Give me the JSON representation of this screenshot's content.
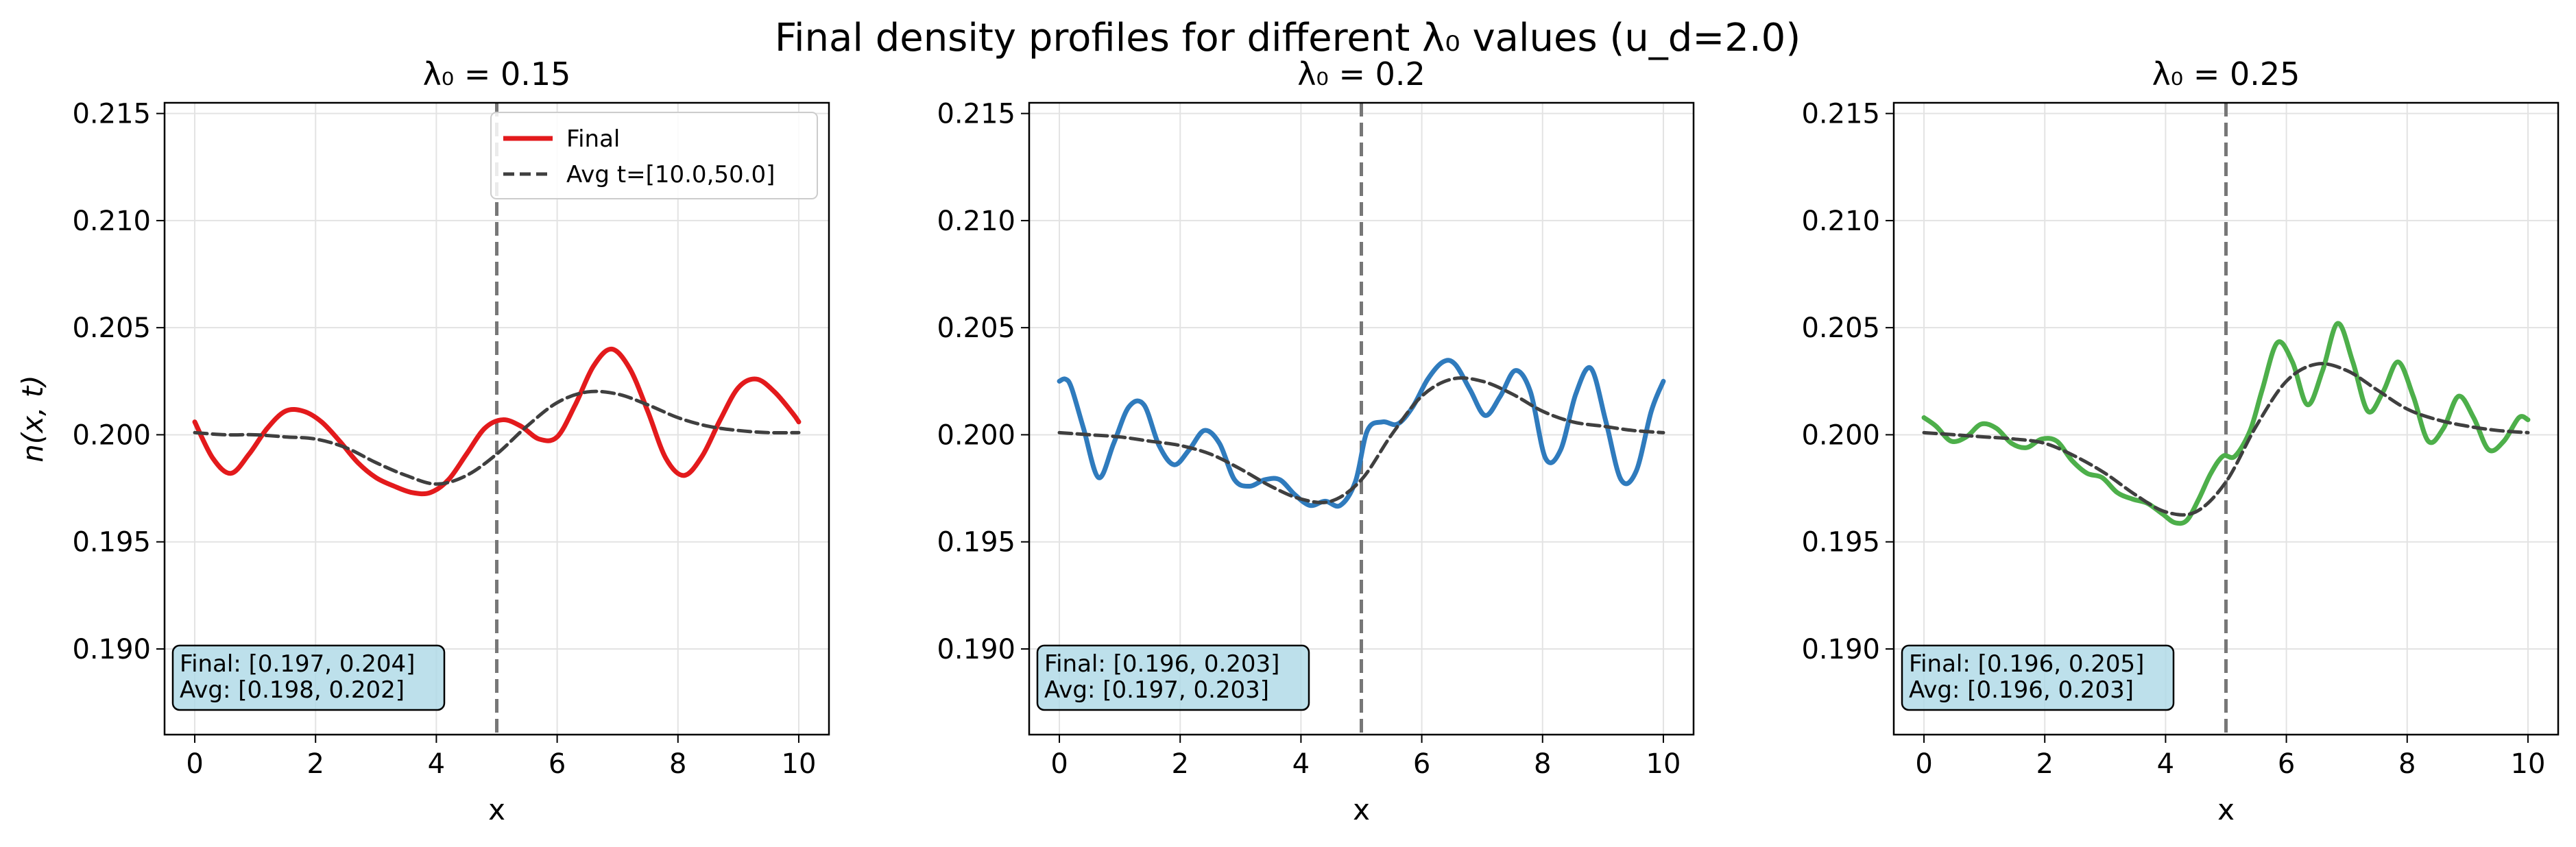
{
  "chart_data": {
    "type": "line",
    "title": "Final density profiles for different λ₀ values (u_d=2.0)",
    "ylabel": "n(x, t)",
    "xlabel": "x",
    "xlim": [
      -0.5,
      10.5
    ],
    "ylim": [
      0.186,
      0.2155
    ],
    "xticks": [
      "0",
      "2",
      "4",
      "6",
      "8",
      "10"
    ],
    "yticks": [
      "0.190",
      "0.195",
      "0.200",
      "0.205",
      "0.210",
      "0.215"
    ],
    "grid": true,
    "vline_x": 5.0,
    "legend": {
      "placement": "top-right",
      "entries": [
        "Final",
        "Avg t=[10.0,50.0]"
      ]
    },
    "panels": [
      {
        "title": "λ₀ = 0.15",
        "color": "#e31a1c",
        "annotation": [
          "Final: [0.197, 0.204]",
          "Avg: [0.198, 0.202]"
        ],
        "series": [
          {
            "name": "Final",
            "x": [
              0,
              0.3,
              0.6,
              0.9,
              1.2,
              1.5,
              1.8,
              2.1,
              2.4,
              2.7,
              3.0,
              3.3,
              3.6,
              3.9,
              4.2,
              4.5,
              4.8,
              5.1,
              5.4,
              5.7,
              6.0,
              6.3,
              6.6,
              6.9,
              7.2,
              7.5,
              7.8,
              8.1,
              8.4,
              8.7,
              9.0,
              9.3,
              9.6,
              9.9,
              10.0
            ],
            "y": [
              0.2006,
              0.1989,
              0.1982,
              0.1991,
              0.2003,
              0.2011,
              0.2011,
              0.2006,
              0.1997,
              0.1987,
              0.198,
              0.1976,
              0.1973,
              0.1973,
              0.1979,
              0.1991,
              0.2003,
              0.2007,
              0.2004,
              0.1998,
              0.1999,
              0.2014,
              0.2032,
              0.204,
              0.2031,
              0.2011,
              0.1989,
              0.1981,
              0.199,
              0.2007,
              0.2022,
              0.2026,
              0.202,
              0.201,
              0.2006
            ]
          },
          {
            "name": "Avg t=[10.0,50.0]",
            "x": [
              0,
              0.5,
              1.0,
              1.5,
              2.0,
              2.5,
              3.0,
              3.5,
              4.0,
              4.5,
              5.0,
              5.5,
              6.0,
              6.5,
              7.0,
              7.5,
              8.0,
              8.5,
              9.0,
              9.5,
              10.0
            ],
            "y": [
              0.2001,
              0.2,
              0.2,
              0.1999,
              0.1998,
              0.1994,
              0.1987,
              0.1981,
              0.1977,
              0.1981,
              0.1991,
              0.2004,
              0.2015,
              0.202,
              0.2019,
              0.2014,
              0.2008,
              0.2004,
              0.2002,
              0.2001,
              0.2001
            ]
          }
        ]
      },
      {
        "title": "λ₀ = 0.2",
        "color": "#2f7bbd",
        "annotation": [
          "Final: [0.196, 0.203]",
          "Avg: [0.197, 0.203]"
        ],
        "series": [
          {
            "name": "Final",
            "x": [
              0,
              0.1,
              0.2,
              0.4,
              0.65,
              0.9,
              1.15,
              1.4,
              1.65,
              1.9,
              2.15,
              2.4,
              2.65,
              2.9,
              3.15,
              3.4,
              3.65,
              3.9,
              4.15,
              4.4,
              4.65,
              4.9,
              5.1,
              5.35,
              5.6,
              5.85,
              6.1,
              6.35,
              6.55,
              6.8,
              7.05,
              7.3,
              7.55,
              7.8,
              8.05,
              8.3,
              8.55,
              8.8,
              9.05,
              9.3,
              9.55,
              9.8,
              10.0
            ],
            "y": [
              0.2025,
              0.2026,
              0.2022,
              0.2003,
              0.198,
              0.1996,
              0.2013,
              0.2014,
              0.1995,
              0.1986,
              0.1993,
              0.2002,
              0.1996,
              0.1979,
              0.1976,
              0.1979,
              0.1979,
              0.1972,
              0.1967,
              0.1969,
              0.1967,
              0.1978,
              0.2002,
              0.2006,
              0.2005,
              0.2013,
              0.2026,
              0.2034,
              0.2033,
              0.2021,
              0.2009,
              0.2018,
              0.203,
              0.202,
              0.1989,
              0.1993,
              0.2019,
              0.2031,
              0.2006,
              0.1979,
              0.1983,
              0.2011,
              0.2025
            ]
          },
          {
            "name": "Avg t=[10.0,50.0]",
            "x": [
              0,
              0.5,
              1.0,
              1.5,
              2.0,
              2.5,
              3.0,
              3.5,
              4.0,
              4.5,
              5.0,
              5.5,
              6.0,
              6.5,
              7.0,
              7.5,
              8.0,
              8.5,
              9.0,
              9.5,
              10.0
            ],
            "y": [
              0.2001,
              0.2,
              0.1999,
              0.1997,
              0.1995,
              0.1991,
              0.1984,
              0.1976,
              0.197,
              0.1969,
              0.1979,
              0.2,
              0.2018,
              0.2026,
              0.2025,
              0.2019,
              0.2011,
              0.2006,
              0.2004,
              0.2002,
              0.2001
            ]
          }
        ]
      },
      {
        "title": "λ₀ = 0.25",
        "color": "#4daf4a",
        "annotation": [
          "Final: [0.196, 0.205]",
          "Avg: [0.196, 0.203]"
        ],
        "series": [
          {
            "name": "Final",
            "x": [
              0,
              0.2,
              0.45,
              0.7,
              0.95,
              1.2,
              1.45,
              1.7,
              1.95,
              2.2,
              2.45,
              2.7,
              2.95,
              3.2,
              3.45,
              3.7,
              3.95,
              4.15,
              4.35,
              4.55,
              4.75,
              4.95,
              5.15,
              5.4,
              5.6,
              5.85,
              6.1,
              6.35,
              6.6,
              6.85,
              7.1,
              7.35,
              7.6,
              7.85,
              8.1,
              8.35,
              8.6,
              8.85,
              9.1,
              9.35,
              9.6,
              9.85,
              10.0
            ],
            "y": [
              0.2008,
              0.2004,
              0.1997,
              0.1999,
              0.2005,
              0.2003,
              0.1996,
              0.1994,
              0.1998,
              0.1997,
              0.1988,
              0.1982,
              0.198,
              0.1973,
              0.197,
              0.1968,
              0.1963,
              0.1959,
              0.196,
              0.197,
              0.1982,
              0.199,
              0.199,
              0.2002,
              0.2021,
              0.2043,
              0.2034,
              0.2014,
              0.203,
              0.2052,
              0.2034,
              0.2011,
              0.202,
              0.2034,
              0.2018,
              0.1997,
              0.2003,
              0.2018,
              0.2008,
              0.1993,
              0.1997,
              0.2008,
              0.2007
            ]
          },
          {
            "name": "Avg t=[10.0,50.0]",
            "x": [
              0,
              0.5,
              1.0,
              1.5,
              2.0,
              2.5,
              3.0,
              3.5,
              4.0,
              4.5,
              5.0,
              5.5,
              6.0,
              6.5,
              7.0,
              7.5,
              8.0,
              8.5,
              9.0,
              9.5,
              10.0
            ],
            "y": [
              0.2001,
              0.2,
              0.1999,
              0.1998,
              0.1996,
              0.199,
              0.1982,
              0.1972,
              0.1964,
              0.1964,
              0.1978,
              0.2004,
              0.2025,
              0.2033,
              0.203,
              0.2021,
              0.2012,
              0.2007,
              0.2004,
              0.2002,
              0.2001
            ]
          }
        ]
      }
    ]
  }
}
